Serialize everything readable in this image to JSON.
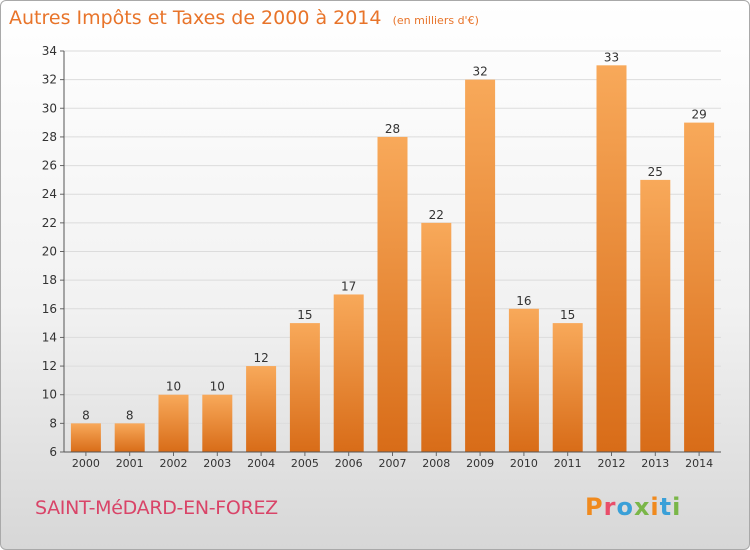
{
  "header": {
    "title": "Autres Impôts et Taxes de 2000 à 2014",
    "subtitle": "(en milliers d'€)"
  },
  "footer": {
    "commune": "SAINT-MéDARD-EN-FOREZ",
    "logo_text": "Proxiti"
  },
  "colors": {
    "bar_light": "#f8a95a",
    "bar_dark": "#d86c18",
    "title": "#e8742a",
    "commune": "#d94468",
    "logo_letters": [
      "#f08a1e",
      "#e94e6a",
      "#3aa0d8",
      "#7ab648",
      "#f08a1e",
      "#3aa0d8",
      "#7ab648"
    ]
  },
  "chart_data": {
    "type": "bar",
    "categories": [
      "2000",
      "2001",
      "2002",
      "2003",
      "2004",
      "2005",
      "2006",
      "2007",
      "2008",
      "2009",
      "2010",
      "2011",
      "2012",
      "2013",
      "2014"
    ],
    "values": [
      8,
      8,
      10,
      10,
      12,
      15,
      17,
      28,
      22,
      32,
      16,
      15,
      33,
      25,
      29
    ],
    "ylim": [
      6,
      34
    ],
    "yticks": [
      6,
      8,
      10,
      12,
      14,
      16,
      18,
      20,
      22,
      24,
      26,
      28,
      30,
      32,
      34
    ],
    "grid": true,
    "data_labels": true
  }
}
